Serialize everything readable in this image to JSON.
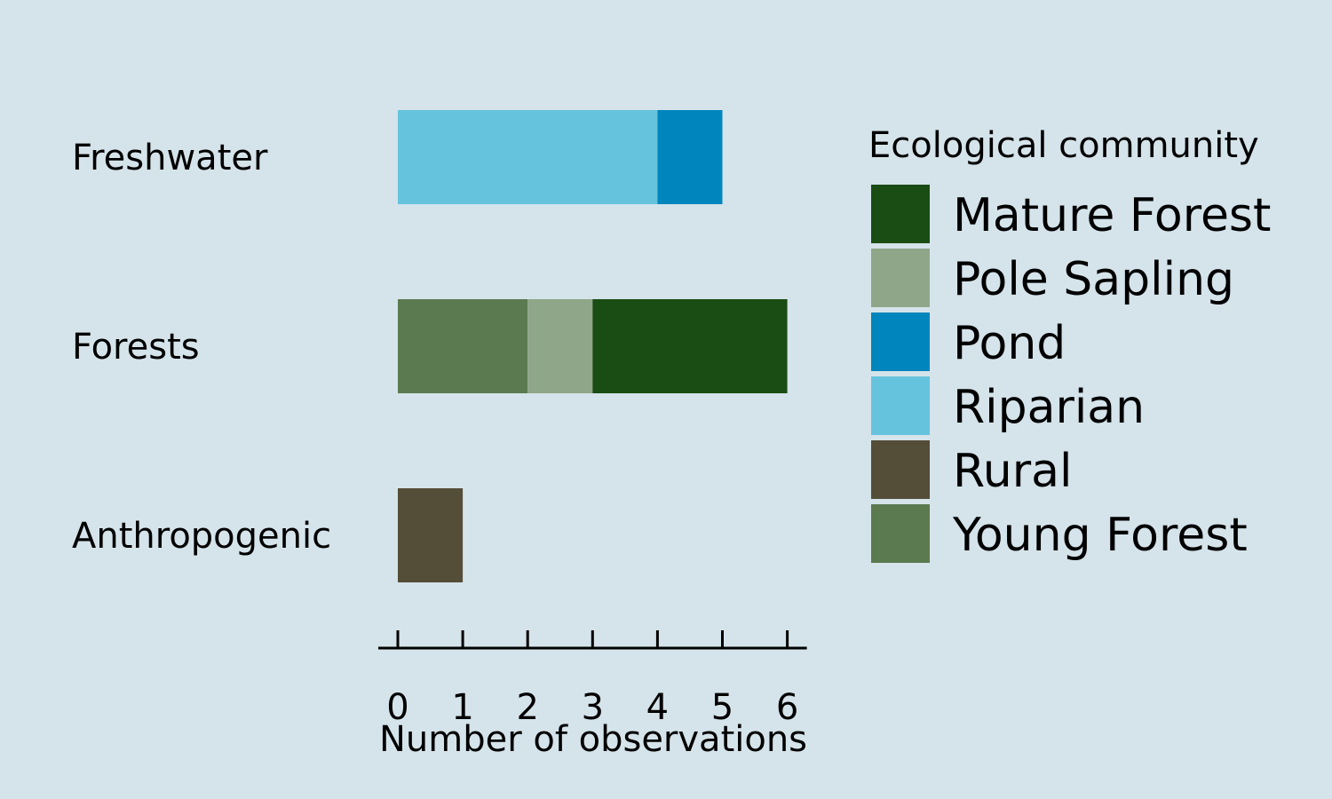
{
  "chart_data": {
    "type": "bar",
    "orientation": "horizontal",
    "stacked": true,
    "categories": [
      "Freshwater",
      "Forests",
      "Anthropogenic"
    ],
    "xlabel": "Number of observations",
    "ylabel": "",
    "xlim": [
      0,
      6
    ],
    "xticks": [
      0,
      1,
      2,
      3,
      4,
      5,
      6
    ],
    "grid": false,
    "legend": {
      "title": "Ecological community",
      "placement": "right",
      "entries": [
        "Mature Forest",
        "Pole Sapling",
        "Pond",
        "Riparian",
        "Rural",
        "Young Forest"
      ]
    },
    "stack_order": [
      "Riparian",
      "Pond",
      "Young Forest",
      "Pole Sapling",
      "Mature Forest",
      "Rural"
    ],
    "series": [
      {
        "name": "Mature Forest",
        "color": "#1a4d14",
        "values": [
          0,
          3,
          0
        ]
      },
      {
        "name": "Pole Sapling",
        "color": "#90a689",
        "values": [
          0,
          1,
          0
        ]
      },
      {
        "name": "Pond",
        "color": "#0085bd",
        "values": [
          1,
          0,
          0
        ]
      },
      {
        "name": "Riparian",
        "color": "#66c3de",
        "values": [
          4,
          0,
          0
        ]
      },
      {
        "name": "Rural",
        "color": "#544d37",
        "values": [
          0,
          0,
          1
        ]
      },
      {
        "name": "Young Forest",
        "color": "#5b7a50",
        "values": [
          0,
          2,
          0
        ]
      }
    ]
  }
}
